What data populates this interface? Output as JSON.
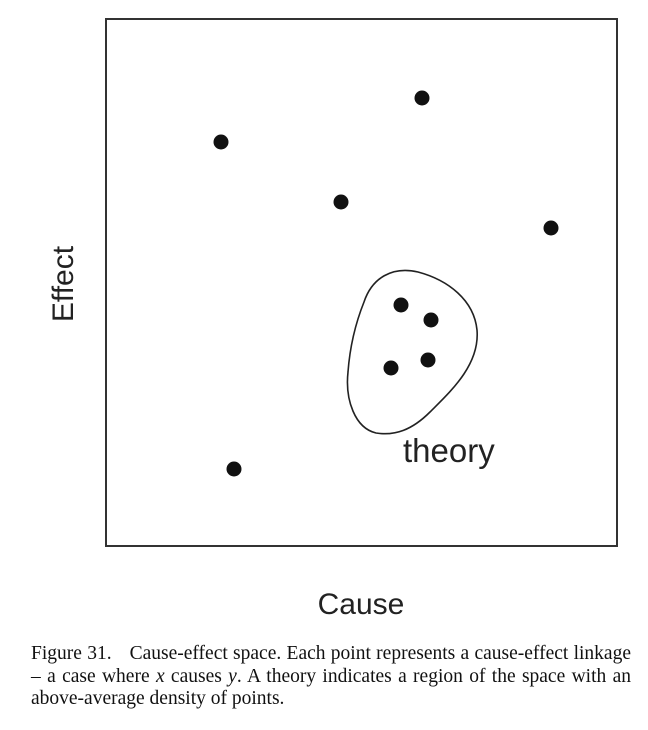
{
  "diagram": {
    "x_axis_label": "Cause",
    "y_axis_label": "Effect",
    "region_label": "theory",
    "point_color": "#111111",
    "frame_color": "#333333",
    "points": [
      {
        "id": "outside-1",
        "group": "outside"
      },
      {
        "id": "outside-2",
        "group": "outside"
      },
      {
        "id": "outside-3",
        "group": "outside"
      },
      {
        "id": "outside-4",
        "group": "outside"
      },
      {
        "id": "outside-5",
        "group": "outside"
      },
      {
        "id": "inside-1",
        "group": "theory"
      },
      {
        "id": "inside-2",
        "group": "theory"
      },
      {
        "id": "inside-3",
        "group": "theory"
      },
      {
        "id": "inside-4",
        "group": "theory"
      }
    ]
  },
  "caption": {
    "label": "Figure 31.",
    "text_1": "Cause-effect space. Each point represents a cause-effect linkage – a case where ",
    "var_x": "x",
    "text_2": " causes ",
    "var_y": "y",
    "text_3": ". A theory indicates a region of the space with an above-average density of points."
  }
}
